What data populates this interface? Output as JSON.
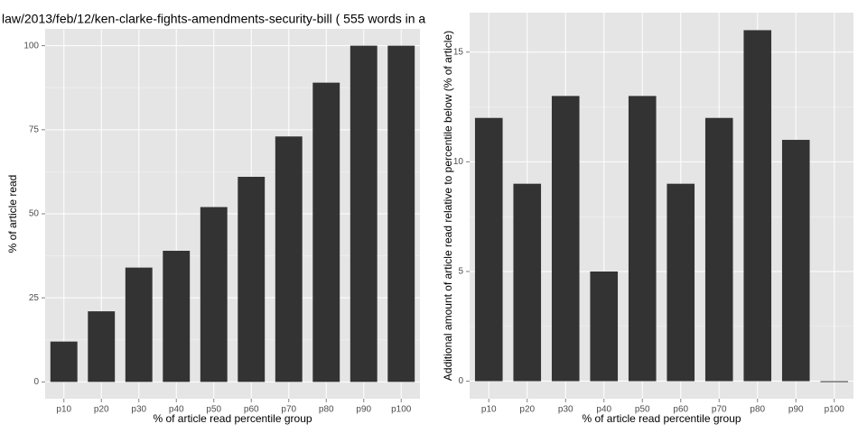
{
  "chart_data": [
    {
      "type": "bar",
      "title": "law/2013/feb/12/ken-clarke-fights-amendments-security-bill ( 555 words in a",
      "x_label": "% of article read percentile group",
      "y_label": "% of article read",
      "categories": [
        "p10",
        "p20",
        "p30",
        "p40",
        "p50",
        "p60",
        "p70",
        "p80",
        "p90",
        "p100"
      ],
      "values": [
        12,
        21,
        34,
        39,
        52,
        61,
        73,
        89,
        100,
        100
      ],
      "color": "#333333",
      "ylim": [
        -5,
        105
      ],
      "yticks": [
        0,
        25,
        50,
        75,
        100
      ],
      "grid": true
    },
    {
      "type": "bar",
      "x_label": "% of article read percentile group",
      "y_label": "Additional amount of article read relative to percentile below (% of article)",
      "categories": [
        "p10",
        "p20",
        "p30",
        "p40",
        "p50",
        "p60",
        "p70",
        "p80",
        "p90",
        "p100"
      ],
      "values": [
        12,
        9,
        13,
        5,
        13,
        9,
        12,
        16,
        11,
        0
      ],
      "color": "#333333",
      "ylim": [
        -0.8,
        16.8
      ],
      "yticks": [
        0,
        5,
        10,
        15
      ],
      "grid": true
    }
  ]
}
